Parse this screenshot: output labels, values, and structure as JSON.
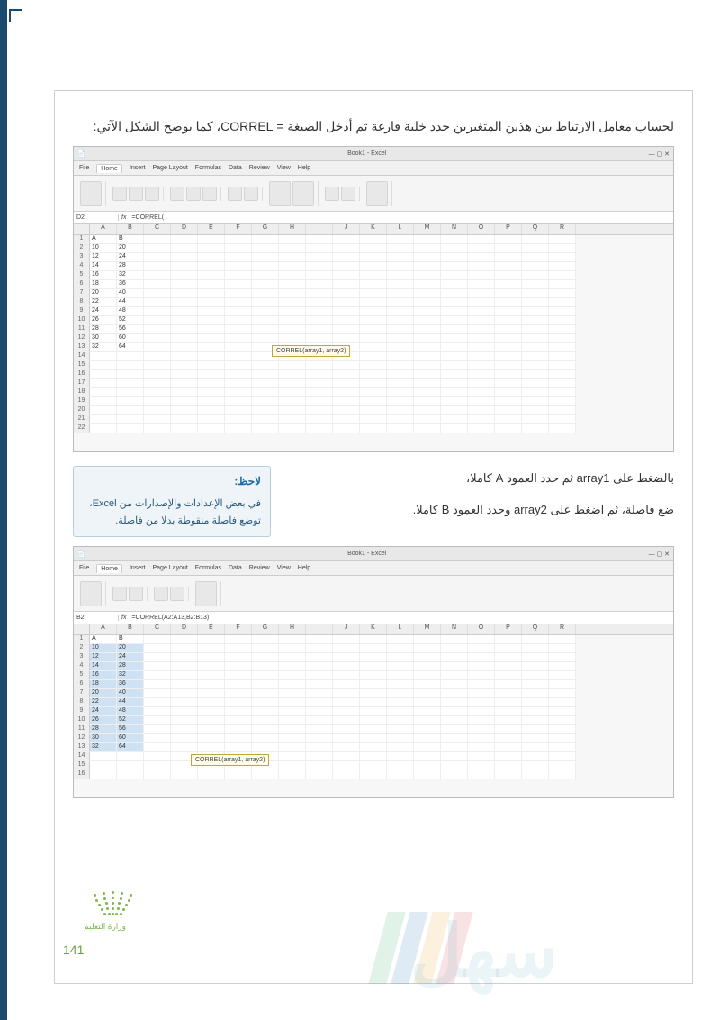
{
  "intro": "لحساب معامل الارتباط بين هذين المتغيرين حدد خلية فارغة ثم أدخل الصيغة = CORREL، كما يوضح الشكل الآتي:",
  "excel1": {
    "title": "Book1 - Excel",
    "tabs": [
      "File",
      "Home",
      "Insert",
      "Page Layout",
      "Formulas",
      "Data",
      "Review",
      "View",
      "Help"
    ],
    "name_box": "D2",
    "formula": "=CORREL(",
    "cols": [
      "A",
      "B",
      "C",
      "D",
      "E",
      "F",
      "G",
      "H",
      "I",
      "J",
      "K",
      "L",
      "M",
      "N",
      "O",
      "P",
      "Q",
      "R"
    ],
    "rows": [
      [
        "1",
        "A",
        "B",
        "",
        "",
        "",
        "",
        "",
        "",
        "",
        "",
        "",
        "",
        "",
        "",
        "",
        "",
        "",
        ""
      ],
      [
        "2",
        "10",
        "20",
        "",
        "",
        "",
        "",
        "",
        "",
        "",
        "",
        "",
        "",
        "",
        "",
        "",
        "",
        "",
        ""
      ],
      [
        "3",
        "12",
        "24",
        "",
        "",
        "",
        "",
        "",
        "",
        "",
        "",
        "",
        "",
        "",
        "",
        "",
        "",
        "",
        ""
      ],
      [
        "4",
        "14",
        "28",
        "",
        "",
        "",
        "",
        "",
        "",
        "",
        "",
        "",
        "",
        "",
        "",
        "",
        "",
        "",
        ""
      ],
      [
        "5",
        "16",
        "32",
        "",
        "",
        "",
        "",
        "",
        "",
        "",
        "",
        "",
        "",
        "",
        "",
        "",
        "",
        "",
        ""
      ],
      [
        "6",
        "18",
        "36",
        "",
        "",
        "",
        "",
        "",
        "",
        "",
        "",
        "",
        "",
        "",
        "",
        "",
        "",
        "",
        ""
      ],
      [
        "7",
        "20",
        "40",
        "",
        "",
        "",
        "",
        "",
        "",
        "",
        "",
        "",
        "",
        "",
        "",
        "",
        "",
        "",
        ""
      ],
      [
        "8",
        "22",
        "44",
        "",
        "",
        "",
        "",
        "",
        "",
        "",
        "",
        "",
        "",
        "",
        "",
        "",
        "",
        "",
        ""
      ],
      [
        "9",
        "24",
        "48",
        "",
        "",
        "",
        "",
        "",
        "",
        "",
        "",
        "",
        "",
        "",
        "",
        "",
        "",
        "",
        ""
      ],
      [
        "10",
        "26",
        "52",
        "",
        "",
        "",
        "",
        "",
        "",
        "",
        "",
        "",
        "",
        "",
        "",
        "",
        "",
        "",
        ""
      ],
      [
        "11",
        "28",
        "56",
        "",
        "",
        "",
        "",
        "",
        "",
        "",
        "",
        "",
        "",
        "",
        "",
        "",
        "",
        "",
        ""
      ],
      [
        "12",
        "30",
        "60",
        "",
        "",
        "",
        "",
        "",
        "",
        "",
        "",
        "",
        "",
        "",
        "",
        "",
        "",
        "",
        ""
      ],
      [
        "13",
        "32",
        "64",
        "",
        "",
        "",
        "",
        "",
        "",
        "",
        "",
        "",
        "",
        "",
        "",
        "",
        "",
        "",
        ""
      ],
      [
        "14",
        "",
        "",
        "",
        "",
        "",
        "",
        "",
        "",
        "",
        "",
        "",
        "",
        "",
        "",
        "",
        "",
        "",
        ""
      ],
      [
        "15",
        "",
        "",
        "",
        "",
        "",
        "",
        "",
        "",
        "",
        "",
        "",
        "",
        "",
        "",
        "",
        "",
        "",
        ""
      ],
      [
        "16",
        "",
        "",
        "",
        "",
        "",
        "",
        "",
        "",
        "",
        "",
        "",
        "",
        "",
        "",
        "",
        "",
        "",
        ""
      ],
      [
        "17",
        "",
        "",
        "",
        "",
        "",
        "",
        "",
        "",
        "",
        "",
        "",
        "",
        "",
        "",
        "",
        "",
        "",
        ""
      ],
      [
        "18",
        "",
        "",
        "",
        "",
        "",
        "",
        "",
        "",
        "",
        "",
        "",
        "",
        "",
        "",
        "",
        "",
        "",
        ""
      ],
      [
        "19",
        "",
        "",
        "",
        "",
        "",
        "",
        "",
        "",
        "",
        "",
        "",
        "",
        "",
        "",
        "",
        "",
        "",
        ""
      ],
      [
        "20",
        "",
        "",
        "",
        "",
        "",
        "",
        "",
        "",
        "",
        "",
        "",
        "",
        "",
        "",
        "",
        "",
        "",
        ""
      ],
      [
        "21",
        "",
        "",
        "",
        "",
        "",
        "",
        "",
        "",
        "",
        "",
        "",
        "",
        "",
        "",
        "",
        "",
        "",
        ""
      ],
      [
        "22",
        "",
        "",
        "",
        "",
        "",
        "",
        "",
        "",
        "",
        "",
        "",
        "",
        "",
        "",
        "",
        "",
        "",
        ""
      ]
    ],
    "tooltip": "CORREL(array1, array2)"
  },
  "inst1": "بالضغط على array1 ثم حدد العمود A كاملا،",
  "inst2": "ضع فاصلة، ثم اضغط على array2 وحدد العمود B كاملا.",
  "note": {
    "title": "لاحظ:",
    "body": "في بعض الإعدادات والإصدارات من Excel، توضع فاصلة منقوطة بدلا من فاصلة."
  },
  "excel2": {
    "name_box": "B2",
    "formula": "=CORREL(A2:A13,B2:B13)",
    "cols": [
      "A",
      "B",
      "C",
      "D",
      "E",
      "F",
      "G",
      "H",
      "I",
      "J",
      "K",
      "L",
      "M",
      "N",
      "O",
      "P",
      "Q",
      "R"
    ],
    "rows": [
      [
        "1",
        "A",
        "B",
        "",
        "",
        "",
        "",
        "",
        "",
        "",
        "",
        "",
        "",
        "",
        "",
        "",
        "",
        "",
        ""
      ],
      [
        "2",
        "10",
        "20",
        "",
        "",
        "",
        "",
        "",
        "",
        "",
        "",
        "",
        "",
        "",
        "",
        "",
        "",
        "",
        ""
      ],
      [
        "3",
        "12",
        "24",
        "",
        "",
        "",
        "",
        "",
        "",
        "",
        "",
        "",
        "",
        "",
        "",
        "",
        "",
        "",
        ""
      ],
      [
        "4",
        "14",
        "28",
        "",
        "",
        "",
        "",
        "",
        "",
        "",
        "",
        "",
        "",
        "",
        "",
        "",
        "",
        "",
        ""
      ],
      [
        "5",
        "16",
        "32",
        "",
        "",
        "",
        "",
        "",
        "",
        "",
        "",
        "",
        "",
        "",
        "",
        "",
        "",
        "",
        ""
      ],
      [
        "6",
        "18",
        "36",
        "",
        "",
        "",
        "",
        "",
        "",
        "",
        "",
        "",
        "",
        "",
        "",
        "",
        "",
        "",
        ""
      ],
      [
        "7",
        "20",
        "40",
        "",
        "",
        "",
        "",
        "",
        "",
        "",
        "",
        "",
        "",
        "",
        "",
        "",
        "",
        "",
        ""
      ],
      [
        "8",
        "22",
        "44",
        "",
        "",
        "",
        "",
        "",
        "",
        "",
        "",
        "",
        "",
        "",
        "",
        "",
        "",
        "",
        ""
      ],
      [
        "9",
        "24",
        "48",
        "",
        "",
        "",
        "",
        "",
        "",
        "",
        "",
        "",
        "",
        "",
        "",
        "",
        "",
        "",
        ""
      ],
      [
        "10",
        "26",
        "52",
        "",
        "",
        "",
        "",
        "",
        "",
        "",
        "",
        "",
        "",
        "",
        "",
        "",
        "",
        "",
        ""
      ],
      [
        "11",
        "28",
        "56",
        "",
        "",
        "",
        "",
        "",
        "",
        "",
        "",
        "",
        "",
        "",
        "",
        "",
        "",
        "",
        ""
      ],
      [
        "12",
        "30",
        "60",
        "",
        "",
        "",
        "",
        "",
        "",
        "",
        "",
        "",
        "",
        "",
        "",
        "",
        "",
        "",
        ""
      ],
      [
        "13",
        "32",
        "64",
        "",
        "",
        "",
        "",
        "",
        "",
        "",
        "",
        "",
        "",
        "",
        "",
        "",
        "",
        "",
        ""
      ],
      [
        "14",
        "",
        "",
        "",
        "",
        "",
        "",
        "",
        "",
        "",
        "",
        "",
        "",
        "",
        "",
        "",
        "",
        "",
        ""
      ],
      [
        "15",
        "",
        "",
        "",
        "",
        "",
        "",
        "",
        "",
        "",
        "",
        "",
        "",
        "",
        "",
        "",
        "",
        "",
        ""
      ],
      [
        "16",
        "",
        "",
        "",
        "",
        "",
        "",
        "",
        "",
        "",
        "",
        "",
        "",
        "",
        "",
        "",
        "",
        "",
        ""
      ]
    ],
    "tooltip": "CORREL(array1, array2)"
  },
  "page_number": "141",
  "ministry": "وزارة التعليم"
}
